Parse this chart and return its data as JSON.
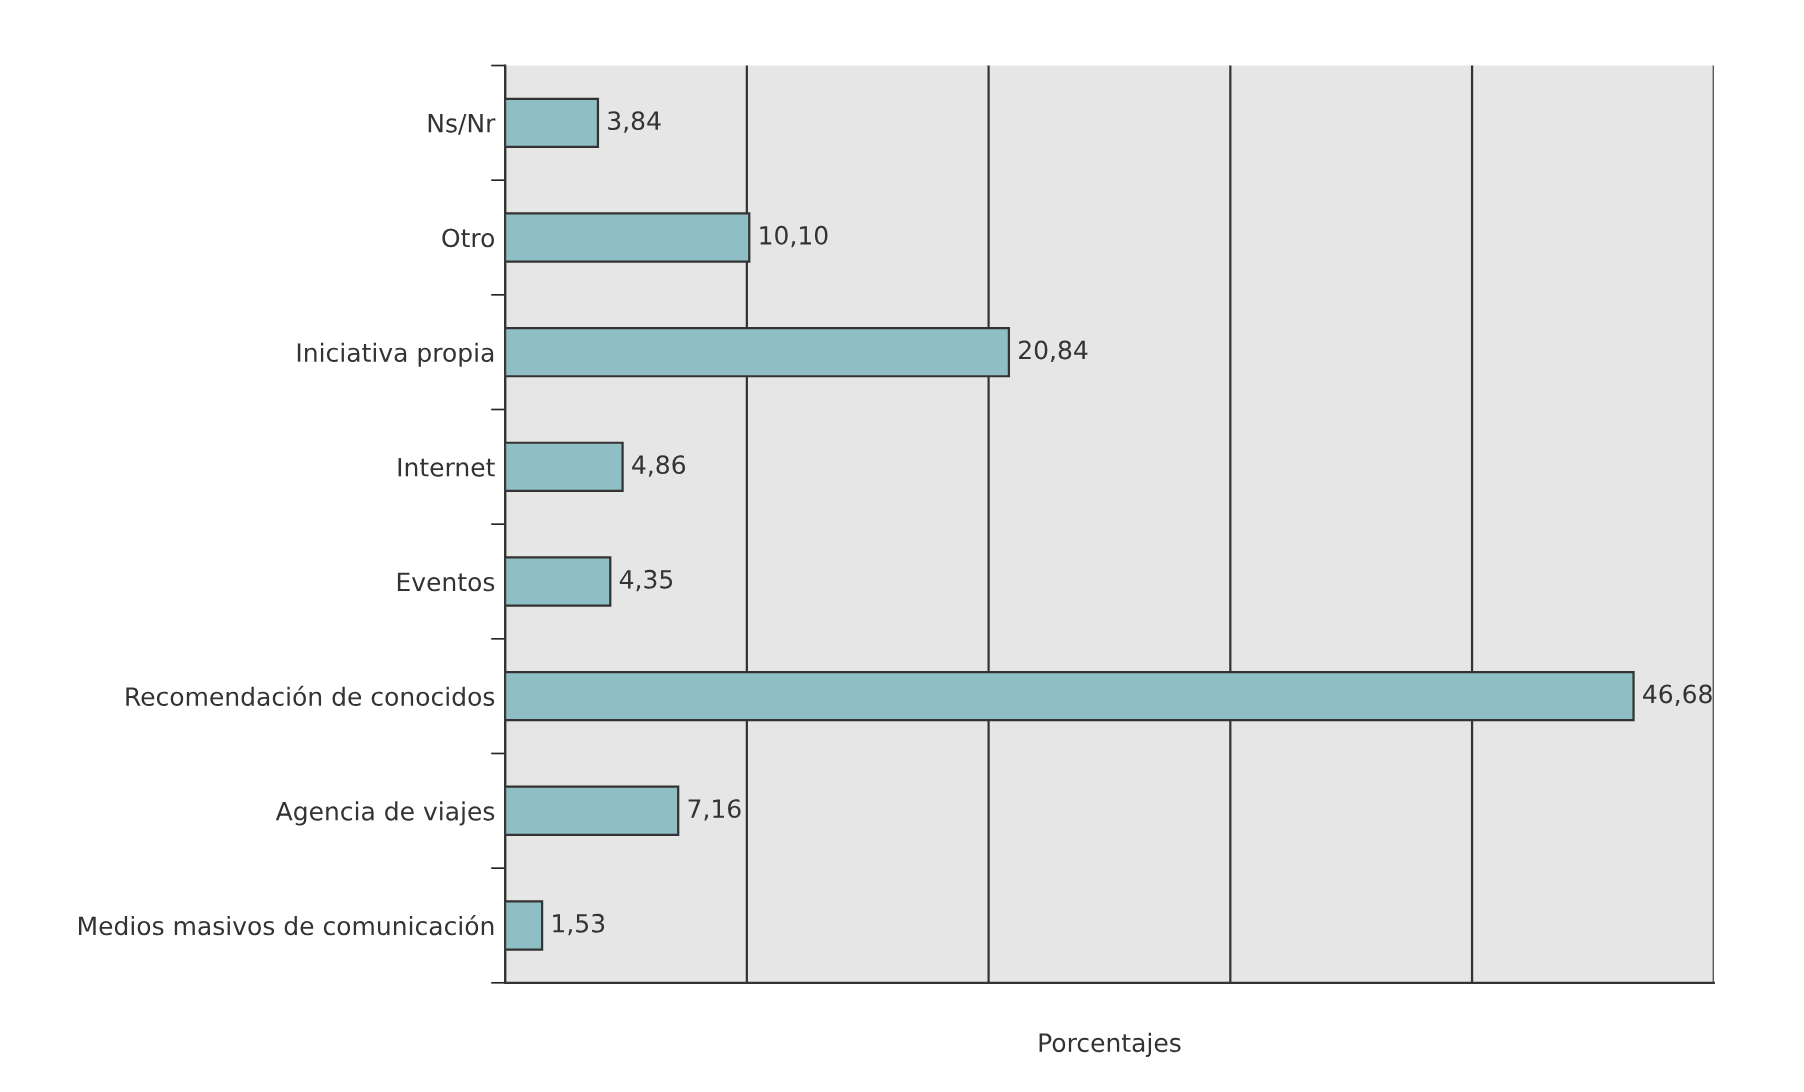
{
  "chart_data": {
    "type": "bar",
    "orientation": "horizontal",
    "xlabel": "Porcentajes",
    "categories": [
      "Ns/Nr",
      "Otro",
      "Iniciativa propia",
      "Internet",
      "Eventos",
      "Recomendación de conocidos",
      "Agencia de viajes",
      "Medios masivos de comunicación"
    ],
    "values": [
      3.84,
      10.1,
      20.84,
      4.86,
      4.35,
      46.68,
      7.16,
      1.53
    ],
    "value_labels": [
      "3,84",
      "10,10",
      "20,84",
      "4,86",
      "4,35",
      "46,68",
      "7,16",
      "1,53"
    ],
    "color": "#8fbfc4",
    "xlim": [
      0,
      50
    ],
    "xticks": [
      {
        "value": 0,
        "label": null
      },
      {
        "value": 10,
        "label": null
      },
      {
        "value": 20,
        "label": null
      },
      {
        "value": 30,
        "label": null
      },
      {
        "value": 40,
        "label": null
      },
      {
        "value": 50,
        "label": null
      }
    ],
    "grid": "x",
    "tick_labels": "y",
    "legend": false
  }
}
